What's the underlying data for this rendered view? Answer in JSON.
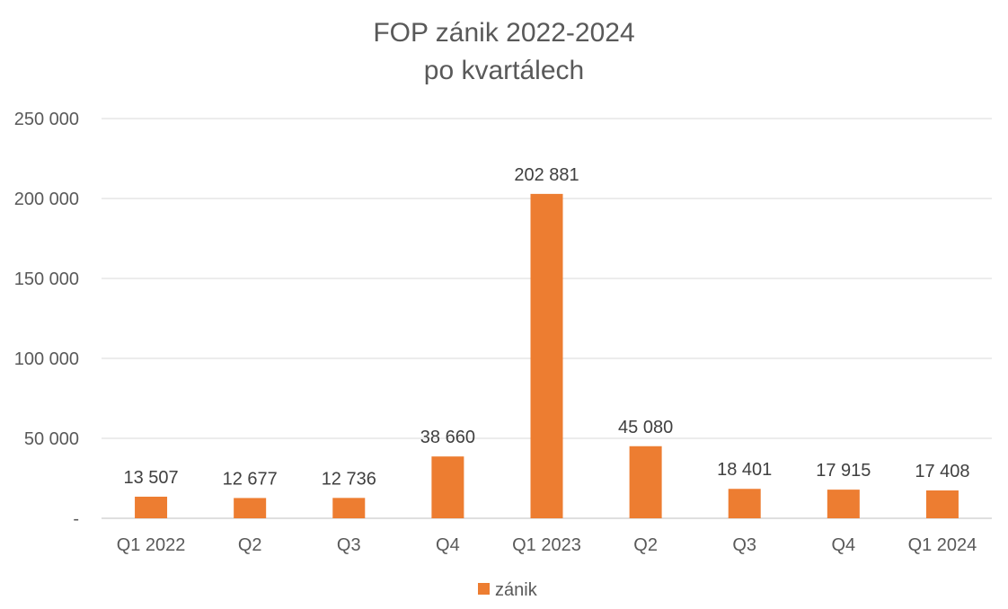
{
  "chart_data": {
    "type": "bar",
    "title": "FOP zánik 2022-2024",
    "subtitle": "po kvartálech",
    "categories": [
      "Q1 2022",
      "Q2",
      "Q3",
      "Q4",
      "Q1 2023",
      "Q2",
      "Q3",
      "Q4",
      "Q1 2024"
    ],
    "series": [
      {
        "name": "zánik",
        "values": [
          13507,
          12677,
          12736,
          38660,
          202881,
          45080,
          18401,
          17915,
          17408
        ],
        "labels": [
          "13 507",
          "12 677",
          "12 736",
          "38 660",
          "202 881",
          "45 080",
          "18 401",
          "17 915",
          "17 408"
        ],
        "color": "#ED7D31"
      }
    ],
    "ylim": [
      0,
      250000
    ],
    "yticks": [
      0,
      50000,
      100000,
      150000,
      200000,
      250000
    ],
    "ytick_labels": [
      "-",
      "50 000",
      "100 000",
      "150 000",
      "200 000",
      "250 000"
    ],
    "xlabel": "",
    "ylabel": "",
    "grid": true,
    "legend": "bottom"
  }
}
